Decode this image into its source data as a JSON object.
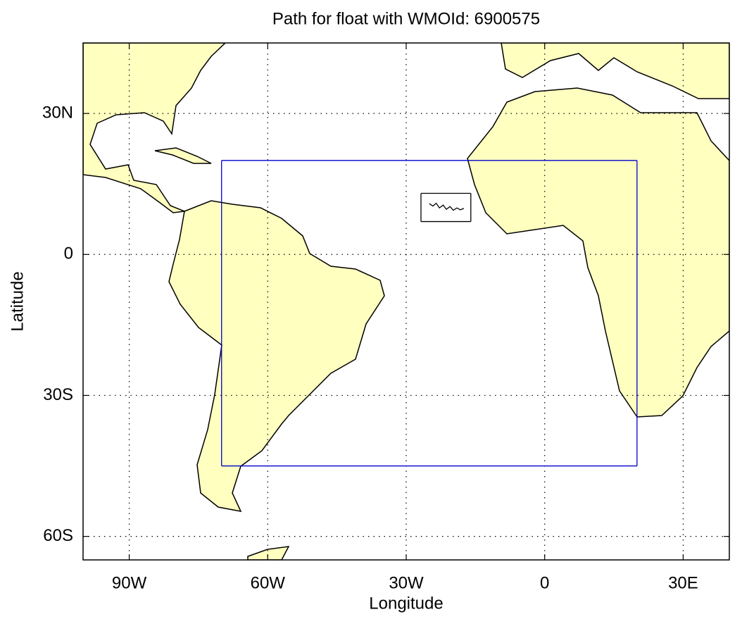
{
  "chart_data": {
    "type": "map",
    "title": "Path for float with WMOId: 6900575",
    "x_label": "Longitude",
    "y_label": "Latitude",
    "xlim": [
      -100,
      40
    ],
    "ylim": [
      -65,
      45
    ],
    "xticks": [
      {
        "value": -90,
        "label": "90W"
      },
      {
        "value": -60,
        "label": "60W"
      },
      {
        "value": -30,
        "label": "30W"
      },
      0,
      {
        "value": 30,
        "label": "30E"
      }
    ],
    "yticks": [
      {
        "value": 30,
        "label": "30N"
      },
      0,
      {
        "value": -30,
        "label": "30S"
      },
      {
        "value": -60,
        "label": "60S"
      }
    ],
    "grid": true,
    "land_color": "#ffffc0",
    "region": {
      "color": "#0000cc",
      "lon": [
        -70,
        20
      ],
      "lat": [
        -45,
        20
      ]
    },
    "path_box": {
      "color": "#000000",
      "lon": [
        -26.8,
        -16
      ],
      "lat": [
        7,
        13
      ]
    },
    "path": {
      "color": "#000000",
      "x": [
        -25,
        -24.2,
        -23.5,
        -22.8,
        -22,
        -21.3,
        -20.5,
        -19.8,
        -19,
        -18.3,
        -17.5
      ],
      "y": [
        10.8,
        10.3,
        10.9,
        9.9,
        10.5,
        9.6,
        10.2,
        9.4,
        9.9,
        9.5,
        9.8
      ]
    }
  }
}
